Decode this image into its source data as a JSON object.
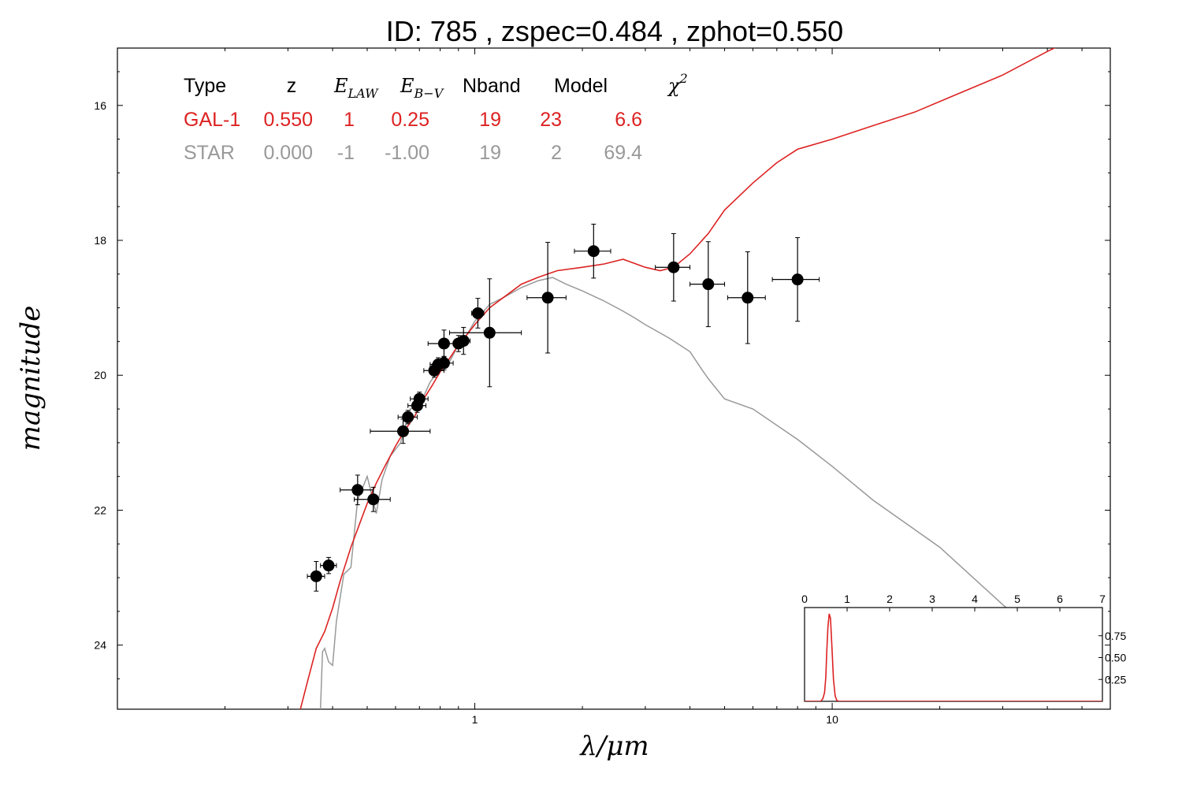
{
  "title": "ID:  785    , zspec=0.484 , zphot=0.550",
  "colors": {
    "gal": "#dd2222",
    "star": "#999999",
    "points": "#000000"
  },
  "table": {
    "headers": [
      "Type",
      "z",
      "E_LAW",
      "E_B-V",
      "Nband",
      "Model",
      "χ²"
    ],
    "header_parts": {
      "elaw_main": "E",
      "elaw_sub": "LAW",
      "ebv_main": "E",
      "ebv_sub": "B−V",
      "chi_main": "χ",
      "chi_sup": "2"
    },
    "rows": [
      {
        "type": "GAL-1",
        "z": "0.550",
        "elaw": "1",
        "ebv": "0.25",
        "nband": "19",
        "model": "23",
        "chi2": "6.6",
        "color": "#dd2222"
      },
      {
        "type": "STAR",
        "z": "0.000",
        "elaw": "-1",
        "ebv": "-1.00",
        "nband": "19",
        "model": "2",
        "chi2": "69.4",
        "color": "#999999"
      }
    ]
  },
  "chart_data": [
    {
      "type": "scatter",
      "xlabel": "λ/μm",
      "ylabel": "magnitude",
      "xscale": "log",
      "xlim": [
        0.1,
        60
      ],
      "ylim": [
        24.95,
        15.15
      ],
      "yaxis_inverted": true,
      "xticks": [
        "1",
        "10"
      ],
      "yticks": [
        "16",
        "18",
        "20",
        "22",
        "24"
      ],
      "points": [
        {
          "x": 0.36,
          "y": 22.98,
          "xerr": 0.02,
          "yerr": 0.22
        },
        {
          "x": 0.39,
          "y": 22.82,
          "xerr": 0.02,
          "yerr": 0.12
        },
        {
          "x": 0.47,
          "y": 21.7,
          "xerr": 0.05,
          "yerr": 0.22
        },
        {
          "x": 0.52,
          "y": 21.84,
          "xerr": 0.06,
          "yerr": 0.18
        },
        {
          "x": 0.63,
          "y": 20.83,
          "xerr": 0.12,
          "yerr": 0.18
        },
        {
          "x": 0.65,
          "y": 20.62,
          "xerr": 0.04,
          "yerr": 0.1
        },
        {
          "x": 0.69,
          "y": 20.45,
          "xerr": 0.04,
          "yerr": 0.1
        },
        {
          "x": 0.7,
          "y": 20.35,
          "xerr": 0.04,
          "yerr": 0.1
        },
        {
          "x": 0.77,
          "y": 19.93,
          "xerr": 0.05,
          "yerr": 0.1
        },
        {
          "x": 0.79,
          "y": 19.84,
          "xerr": 0.04,
          "yerr": 0.1
        },
        {
          "x": 0.82,
          "y": 19.82,
          "xerr": 0.05,
          "yerr": 0.1
        },
        {
          "x": 0.82,
          "y": 19.53,
          "xerr": 0.08,
          "yerr": 0.2
        },
        {
          "x": 0.9,
          "y": 19.53,
          "xerr": 0.03,
          "yerr": 0.12
        },
        {
          "x": 0.93,
          "y": 19.49,
          "xerr": 0.04,
          "yerr": 0.2
        },
        {
          "x": 1.02,
          "y": 19.08,
          "xerr": 0.04,
          "yerr": 0.22
        },
        {
          "x": 1.1,
          "y": 19.37,
          "xerr": 0.25,
          "yerr": 0.8
        },
        {
          "x": 1.6,
          "y": 18.85,
          "xerr": 0.2,
          "yerr": 0.82
        },
        {
          "x": 2.15,
          "y": 18.16,
          "xerr": 0.25,
          "yerr": 0.4
        },
        {
          "x": 3.6,
          "y": 18.4,
          "xerr": 0.4,
          "yerr": 0.5
        },
        {
          "x": 4.5,
          "y": 18.65,
          "xerr": 0.5,
          "yerr": 0.63
        },
        {
          "x": 5.8,
          "y": 18.85,
          "xerr": 0.7,
          "yerr": 0.68
        },
        {
          "x": 8.0,
          "y": 18.58,
          "xerr": 1.2,
          "yerr": 0.62
        }
      ],
      "series": [
        {
          "x": [
            0.325,
            0.34,
            0.36,
            0.38,
            0.4,
            0.42,
            0.45,
            0.48,
            0.5,
            0.53,
            0.56,
            0.6,
            0.64,
            0.68,
            0.72,
            0.76,
            0.8,
            0.85,
            0.9,
            0.95,
            1.0,
            1.1,
            1.2,
            1.35,
            1.5,
            1.7,
            2.0,
            2.3,
            2.6,
            3.0,
            3.3,
            3.6,
            4.0,
            4.5,
            5.0,
            6.0,
            7.0,
            8.0,
            10.0,
            13.0,
            17.0,
            22.0,
            30.0,
            40.0,
            50.0,
            60.0
          ],
          "y": [
            24.95,
            24.55,
            24.05,
            23.8,
            23.45,
            23.05,
            22.55,
            22.15,
            21.9,
            21.6,
            21.35,
            21.05,
            20.8,
            20.6,
            20.35,
            20.15,
            19.95,
            19.75,
            19.55,
            19.4,
            19.25,
            19.0,
            18.85,
            18.65,
            18.55,
            18.45,
            18.4,
            18.35,
            18.28,
            18.4,
            18.45,
            18.4,
            18.2,
            17.9,
            17.55,
            17.15,
            16.85,
            16.65,
            16.5,
            16.3,
            16.1,
            15.85,
            15.55,
            15.2,
            14.95,
            14.8
          ]
        },
        {
          "x": [
            0.37,
            0.375,
            0.38,
            0.39,
            0.4,
            0.41,
            0.43,
            0.45,
            0.47,
            0.5,
            0.53,
            0.55,
            0.58,
            0.62,
            0.66,
            0.7,
            0.75,
            0.8,
            0.85,
            0.9,
            0.95,
            1.0,
            1.1,
            1.2,
            1.35,
            1.5,
            1.65,
            1.8,
            2.0,
            2.3,
            2.6,
            2.8,
            3.0,
            3.5,
            4.0,
            4.3,
            4.5,
            5.0,
            6.0,
            8.0,
            10.0,
            13.0,
            20.0,
            30.0,
            45.0,
            55.0
          ],
          "y": [
            24.95,
            24.1,
            24.05,
            24.25,
            24.3,
            23.65,
            22.95,
            22.85,
            21.85,
            21.5,
            22.05,
            21.55,
            21.2,
            21.0,
            20.5,
            20.45,
            20.1,
            19.9,
            19.8,
            19.55,
            19.4,
            19.2,
            18.95,
            18.85,
            18.7,
            18.6,
            18.55,
            18.65,
            18.75,
            18.9,
            19.05,
            19.15,
            19.25,
            19.45,
            19.65,
            19.9,
            20.05,
            20.35,
            20.5,
            20.95,
            21.35,
            21.85,
            22.55,
            23.4,
            24.2,
            24.6
          ]
        }
      ]
    },
    {
      "type": "line",
      "xlim": [
        0,
        7
      ],
      "ylim": [
        0,
        1.0
      ],
      "xticks": [
        "0",
        "1",
        "2",
        "3",
        "4",
        "5",
        "6",
        "7"
      ],
      "yticks": [
        "0.25",
        "0.50",
        "0.75"
      ],
      "series": [
        {
          "x": [
            0,
            0.38,
            0.43,
            0.47,
            0.5,
            0.52,
            0.55,
            0.58,
            0.61,
            0.64,
            0.68,
            0.72,
            0.76,
            0.8,
            7.0
          ],
          "y": [
            0,
            0,
            0.03,
            0.1,
            0.28,
            0.55,
            0.85,
            1.0,
            0.95,
            0.65,
            0.25,
            0.06,
            0.01,
            0,
            0
          ]
        }
      ]
    }
  ]
}
